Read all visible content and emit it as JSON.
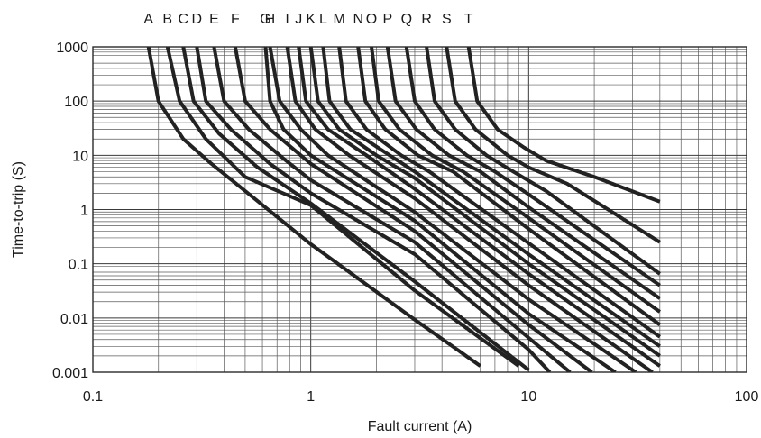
{
  "chart_data": {
    "type": "line",
    "title": "",
    "xlabel": "Fault current (A)",
    "ylabel": "Time-to-trip (S)",
    "x_scale": "log",
    "y_scale": "log",
    "xlim": [
      0.1,
      100
    ],
    "ylim": [
      0.001,
      1000
    ],
    "grid": true,
    "x_ticks": [
      0.1,
      1,
      10,
      100
    ],
    "x_tick_labels": [
      "0.1",
      "1",
      "10",
      "100"
    ],
    "y_ticks": [
      0.001,
      0.01,
      0.1,
      1,
      10,
      100,
      1000
    ],
    "y_tick_labels": [
      "0.001",
      "0.01",
      "0.1",
      "1",
      "10",
      "100",
      "1000"
    ],
    "curve_labels": [
      "A",
      "B",
      "C",
      "D",
      "E",
      "F",
      "G",
      "H",
      "I",
      "J",
      "K",
      "L",
      "M",
      "N",
      "O",
      "P",
      "Q",
      "R",
      "S",
      "T"
    ],
    "series": [
      {
        "name": "A",
        "x": [
          0.18,
          0.2,
          0.26,
          0.35,
          1.0,
          3.0,
          6.0
        ],
        "y": [
          1000,
          100,
          20,
          7,
          0.23,
          0.0093,
          0.0013
        ]
      },
      {
        "name": "B",
        "x": [
          0.22,
          0.25,
          0.33,
          0.5,
          1.0,
          3.0,
          9.0
        ],
        "y": [
          1000,
          100,
          20,
          4,
          1.2,
          0.032,
          0.0013
        ]
      },
      {
        "name": "C",
        "x": [
          0.26,
          0.29,
          0.38,
          0.57,
          1.0,
          3.0,
          10.0
        ],
        "y": [
          1000,
          100,
          25,
          6,
          1.3,
          0.047,
          0.0011
        ]
      },
      {
        "name": "D",
        "x": [
          0.3,
          0.33,
          0.43,
          0.65,
          1.0,
          3.0,
          10.0,
          12.5
        ],
        "y": [
          1000,
          100,
          30,
          7,
          2,
          0.15,
          0.0026,
          0.001
        ]
      },
      {
        "name": "E",
        "x": [
          0.36,
          0.4,
          0.52,
          0.77,
          1.0,
          3.0,
          10.0,
          15.5
        ],
        "y": [
          1000,
          100,
          30,
          8,
          3.5,
          0.25,
          0.0043,
          0.001
        ]
      },
      {
        "name": "F",
        "x": [
          0.45,
          0.5,
          0.65,
          1.0,
          3.0,
          10.0,
          19.5
        ],
        "y": [
          1000,
          100,
          30,
          7,
          0.4,
          0.0075,
          0.001
        ]
      },
      {
        "name": "G",
        "x": [
          0.62,
          0.65,
          0.75,
          1.0,
          3.0,
          10.0,
          25.0
        ],
        "y": [
          1000,
          100,
          30,
          10,
          0.62,
          0.012,
          0.001
        ]
      },
      {
        "name": "H",
        "x": [
          0.65,
          0.72,
          0.9,
          1.2,
          3.0,
          10.0,
          31.0
        ],
        "y": [
          1000,
          100,
          30,
          10,
          0.9,
          0.022,
          0.001
        ]
      },
      {
        "name": "I",
        "x": [
          0.78,
          0.85,
          1.05,
          1.5,
          3.0,
          10.0,
          37.0
        ],
        "y": [
          1000,
          100,
          30,
          10,
          1.6,
          0.04,
          0.001
        ]
      },
      {
        "name": "J",
        "x": [
          0.88,
          0.95,
          1.2,
          1.8,
          3.0,
          10.0,
          40.0
        ],
        "y": [
          1000,
          100,
          30,
          10,
          2.4,
          0.065,
          0.0013
        ]
      },
      {
        "name": "K",
        "x": [
          1.0,
          1.08,
          1.35,
          2.0,
          3.0,
          10.0,
          40.0
        ],
        "y": [
          1000,
          100,
          30,
          10,
          3.8,
          0.1,
          0.002
        ]
      },
      {
        "name": "L",
        "x": [
          1.14,
          1.22,
          1.52,
          2.3,
          3.0,
          10.0,
          40.0
        ],
        "y": [
          1000,
          100,
          30,
          10,
          5,
          0.15,
          0.003
        ]
      },
      {
        "name": "M",
        "x": [
          1.35,
          1.45,
          1.8,
          2.6,
          3.5,
          10.0,
          40.0
        ],
        "y": [
          1000,
          100,
          30,
          10,
          5,
          0.24,
          0.0045
        ]
      },
      {
        "name": "N",
        "x": [
          1.65,
          1.78,
          2.2,
          3.1,
          4.5,
          10.0,
          40.0
        ],
        "y": [
          1000,
          100,
          30,
          10,
          5,
          0.44,
          0.0075
        ]
      },
      {
        "name": "O",
        "x": [
          1.9,
          2.05,
          2.55,
          3.6,
          5.0,
          10.0,
          40.0
        ],
        "y": [
          1000,
          100,
          30,
          10,
          5,
          0.7,
          0.013
        ]
      },
      {
        "name": "P",
        "x": [
          2.25,
          2.45,
          3.05,
          4.3,
          6.0,
          10.0,
          40.0
        ],
        "y": [
          1000,
          100,
          30,
          10,
          5,
          1.1,
          0.023
        ]
      },
      {
        "name": "Q",
        "x": [
          2.75,
          3.0,
          3.7,
          5.2,
          7.0,
          10.0,
          40.0
        ],
        "y": [
          1000,
          100,
          30,
          10,
          5,
          1.9,
          0.04
        ]
      },
      {
        "name": "R",
        "x": [
          3.4,
          3.7,
          4.6,
          6.4,
          8.5,
          12.0,
          40.0
        ],
        "y": [
          1000,
          100,
          30,
          10,
          5,
          2.2,
          0.065
        ]
      },
      {
        "name": "S",
        "x": [
          4.2,
          4.6,
          5.7,
          8.0,
          10.0,
          15.0,
          40.0
        ],
        "y": [
          1000,
          100,
          30,
          10,
          6,
          3,
          0.25
        ]
      },
      {
        "name": "T",
        "x": [
          5.3,
          5.8,
          7.2,
          9.5,
          12.0,
          20.0,
          40.0
        ],
        "y": [
          1000,
          100,
          30,
          14,
          8,
          4,
          1.4
        ]
      }
    ]
  }
}
